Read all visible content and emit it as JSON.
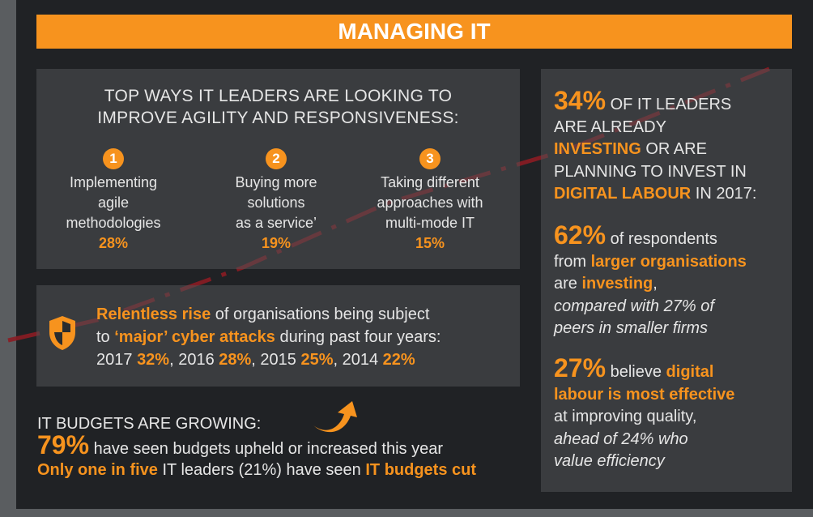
{
  "title": "MANAGING IT",
  "agility": {
    "heading_line1": "TOP WAYS IT LEADERS ARE LOOKING TO",
    "heading_line2": "IMPROVE AGILITY AND RESPONSIVENESS:",
    "items": [
      {
        "num": "1",
        "l1": "Implementing",
        "l2": "agile",
        "l3": "methodologies",
        "pct": "28%"
      },
      {
        "num": "2",
        "l1": "Buying more",
        "l2": "solutions",
        "l3": "as a service’",
        "pct": "19%"
      },
      {
        "num": "3",
        "l1": "Taking different",
        "l2": "approaches with",
        "l3": "multi-mode IT",
        "pct": "15%"
      }
    ]
  },
  "cyber": {
    "h1": "Relentless rise",
    "t1": " of organisations being subject",
    "t2": "to ",
    "h2": "‘major’ cyber attacks",
    "t3": " during past four years:",
    "y1": "2017 ",
    "v1": "32%",
    "y2": ", 2016 ",
    "v2": "28%",
    "y3": ", 2015 ",
    "v3": "25%",
    "y4": ", 2014 ",
    "v4": "22%"
  },
  "budget": {
    "heading": "IT BUDGETS ARE GROWING:",
    "pct": "79%",
    "t1": " have seen budgets upheld or increased this year",
    "h1": "Only one in five",
    "t2": " IT leaders (21%) have seen ",
    "h2": "IT budgets cut"
  },
  "digital": {
    "p1": {
      "pct": "34%",
      "a": " OF IT LEADERS",
      "b": "ARE ALREADY",
      "c": "INVESTING",
      "d": " OR ARE",
      "e": "PLANNING TO INVEST IN",
      "f": "DIGITAL LABOUR",
      "g": " IN 2017:"
    },
    "p2": {
      "pct": "62%",
      "a": " of respondents",
      "b": "from ",
      "c": "larger organisations",
      "d": "are ",
      "e": "investing",
      "f": ",",
      "g": "compared with 27% of",
      "h": "peers in smaller firms"
    },
    "p3": {
      "pct": "27%",
      "a": " believe ",
      "b": "digital",
      "c": "labour is most effective",
      "d": "at improving quality,",
      "e": "ahead of 24% who",
      "f": "value efficiency"
    }
  },
  "colors": {
    "accent": "#f7931e",
    "bg": "#202225",
    "box": "#45474a"
  }
}
